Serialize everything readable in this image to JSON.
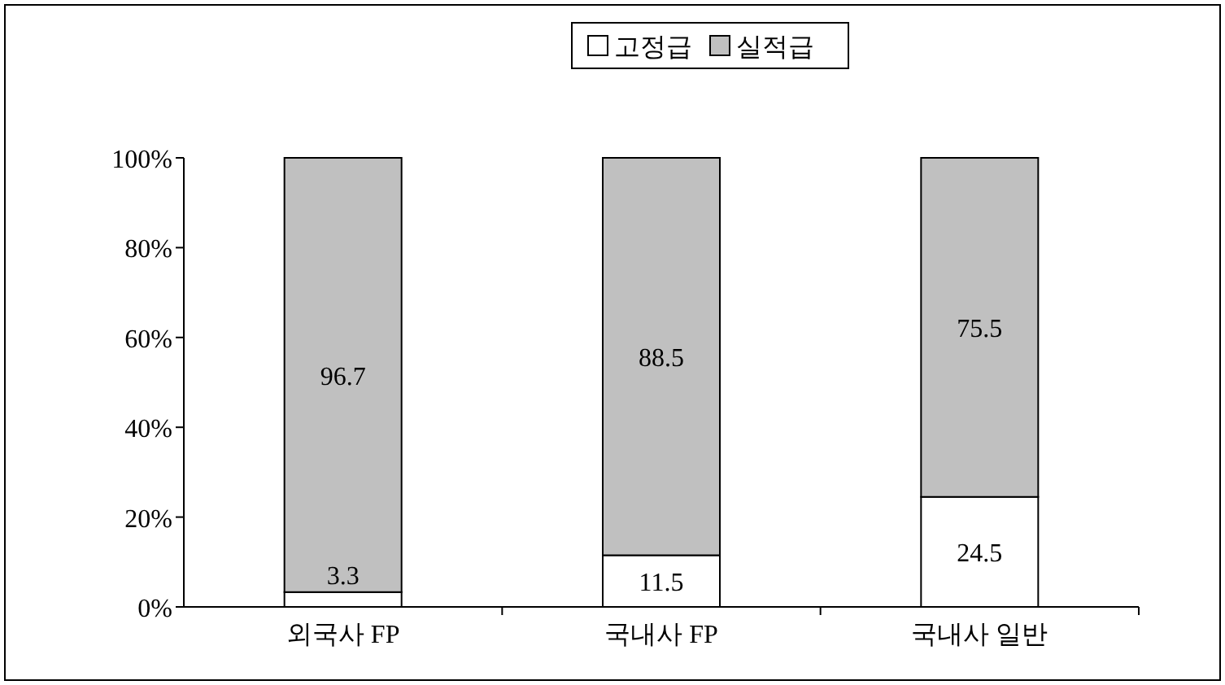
{
  "chart_data": {
    "type": "bar",
    "stacked": true,
    "categories": [
      "외국사 FP",
      "국내사 FP",
      "국내사 일반"
    ],
    "series": [
      {
        "name": "고정급",
        "color": "#ffffff",
        "values": [
          3.3,
          11.5,
          24.5
        ]
      },
      {
        "name": "실적급",
        "color": "#c0c0c0",
        "values": [
          96.7,
          88.5,
          75.5
        ]
      }
    ],
    "ylim": [
      0,
      100
    ],
    "yticks": [
      {
        "value": 0,
        "label": "0%"
      },
      {
        "value": 20,
        "label": "20%"
      },
      {
        "value": 40,
        "label": "40%"
      },
      {
        "value": 60,
        "label": "60%"
      },
      {
        "value": 80,
        "label": "80%"
      },
      {
        "value": 100,
        "label": "100%"
      }
    ],
    "data_labels": true,
    "legend": "top",
    "grid": false
  }
}
